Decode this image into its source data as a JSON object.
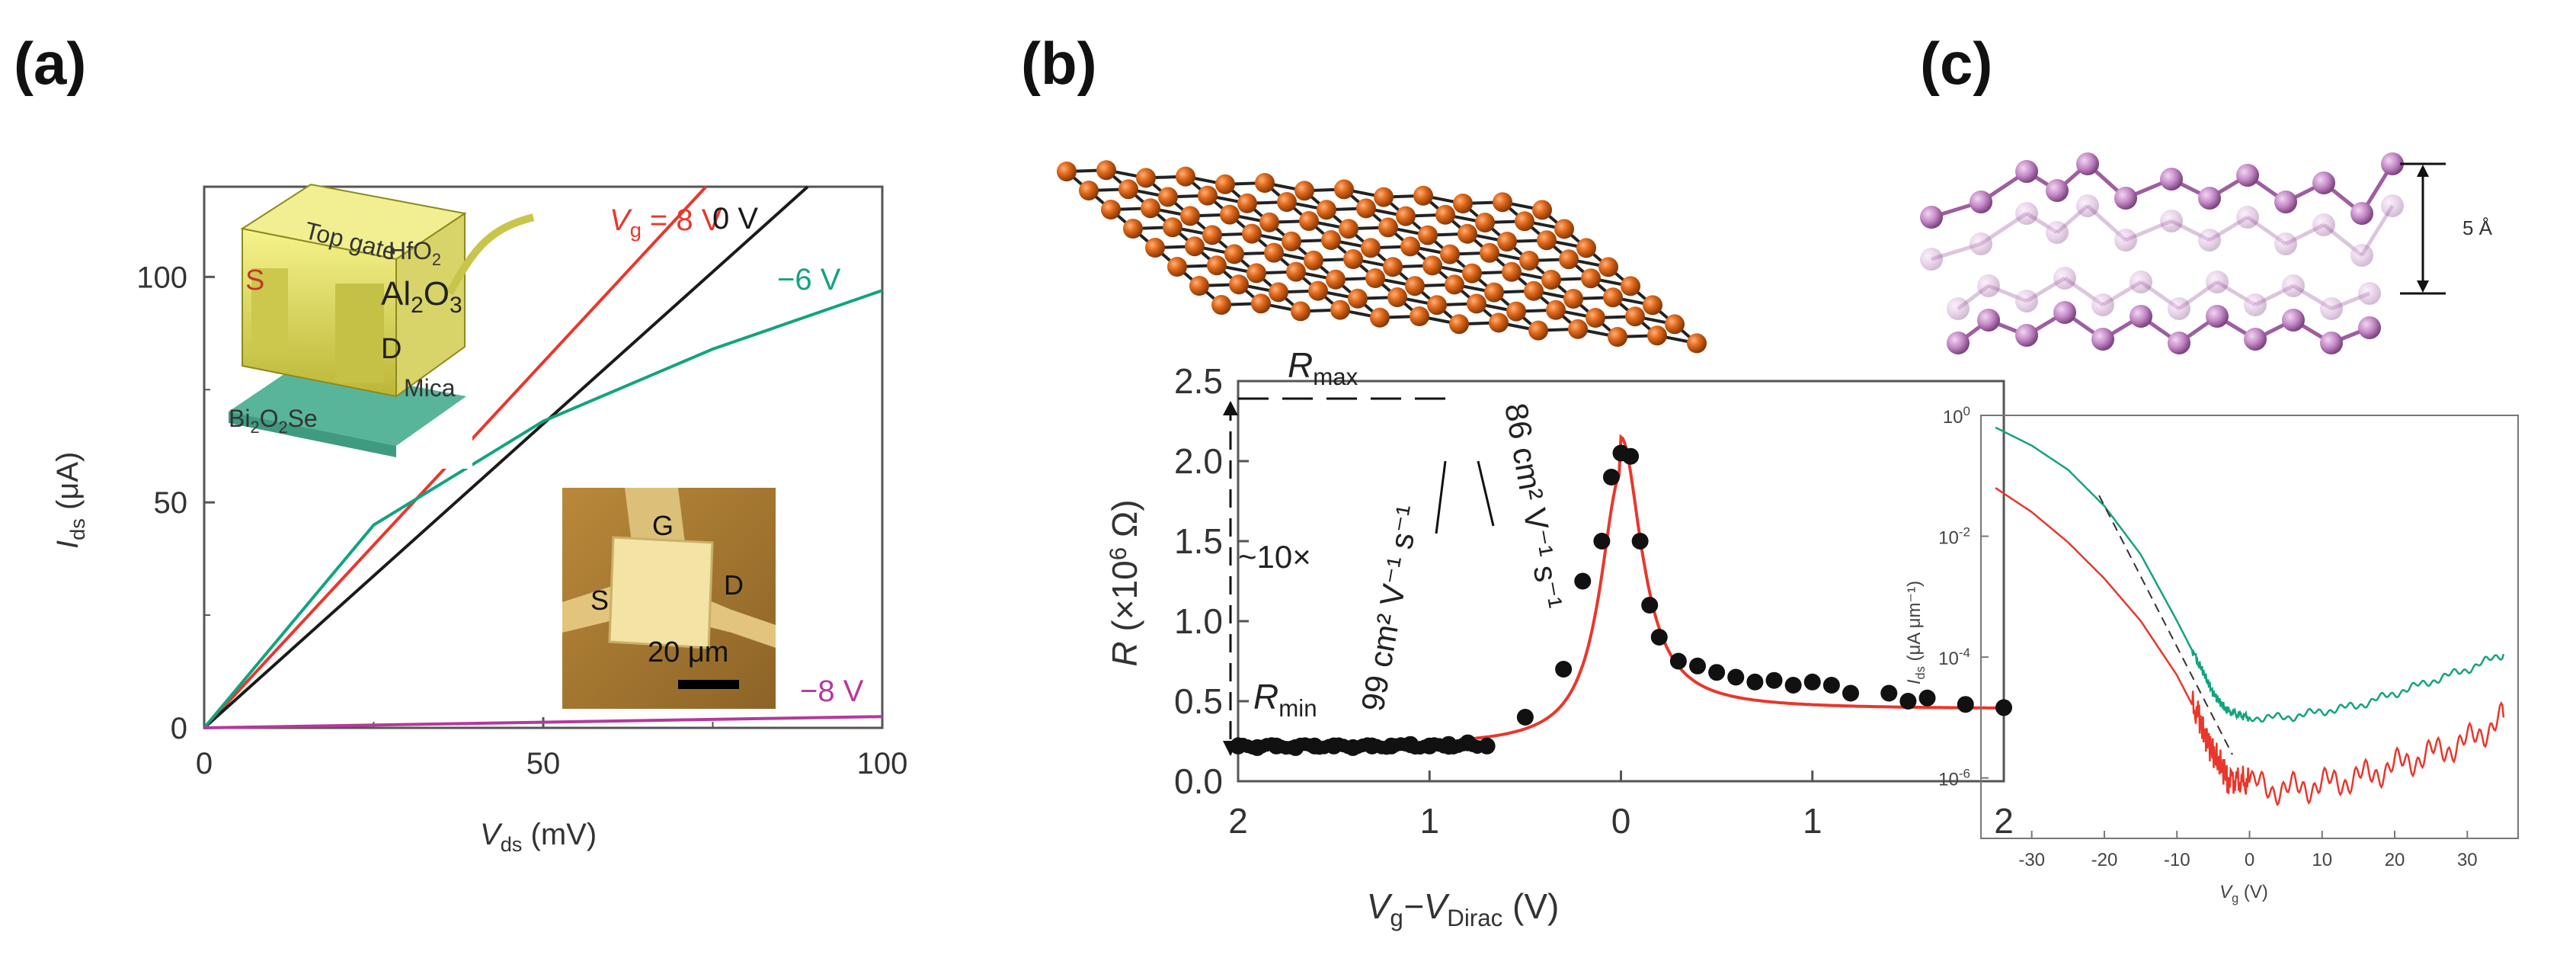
{
  "chart_data": [
    {
      "panel": "(a)",
      "type": "line",
      "xlabel_main": "V",
      "xlabel_sub": "ds",
      "xlabel_unit": " (mV)",
      "ylabel_main": "I",
      "ylabel_sub": "ds",
      "ylabel_unit": " (μA)",
      "xlim": [
        0,
        100
      ],
      "ylim": [
        0,
        120
      ],
      "x_ticks": [
        0,
        50,
        100
      ],
      "y_ticks": [
        0,
        50,
        100
      ],
      "series": [
        {
          "name": "V_g = 8 V",
          "label_main": "V",
          "label_sub": "g",
          "label_rest": " = 8 V",
          "color": "#e8372c",
          "points": [
            [
              0,
              0
            ],
            [
              74,
              120
            ]
          ]
        },
        {
          "name": "0 V",
          "label": "0 V",
          "color": "#1a1a1a",
          "points": [
            [
              0,
              0
            ],
            [
              89,
              120
            ]
          ]
        },
        {
          "name": "−6 V",
          "label": "−6 V",
          "color": "#12a37f",
          "points": [
            [
              0,
              0
            ],
            [
              25,
              45
            ],
            [
              50,
              68
            ],
            [
              75,
              84
            ],
            [
              100,
              97
            ]
          ]
        },
        {
          "name": "−8 V",
          "label": "−8 V",
          "color": "#b5399b",
          "points": [
            [
              0,
              0
            ],
            [
              100,
              2.5
            ]
          ]
        }
      ],
      "inset_device": {
        "labels": {
          "top_gate": "Top gate",
          "hfo2_main": "HfO",
          "hfo2_sub": "2",
          "al2o3_a": "Al",
          "al2o3_sub1": "2",
          "al2o3_b": "O",
          "al2o3_sub2": "3",
          "source": "S",
          "drain": "D",
          "mica": "Mica",
          "bi_a": "Bi",
          "bi_sub1": "2",
          "bi_b": "O",
          "bi_sub2": "2",
          "bi_c": "Se"
        }
      },
      "inset_micrograph": {
        "gate": "G",
        "source": "S",
        "drain": "D",
        "scale": "20 μm"
      }
    },
    {
      "panel": "(b)",
      "type": "scatter",
      "xlabel_a": "V",
      "xlabel_sub1": "g",
      "xlabel_b": "−V",
      "xlabel_sub2": "Dirac",
      "xlabel_unit": " (V)",
      "ylabel_a": "R",
      "ylabel_b": " (×10",
      "ylabel_sup": "6",
      "ylabel_c": " Ω)",
      "xlim": [
        -2,
        2
      ],
      "ylim": [
        0,
        2.5
      ],
      "x_tick_labels": [
        "2",
        "1",
        "0",
        "1",
        "2"
      ],
      "x_ticks": [
        -2,
        -1,
        0,
        1,
        2
      ],
      "y_ticks": [
        0.0,
        0.5,
        1.0,
        1.5,
        2.0,
        2.5
      ],
      "annotations": {
        "rmax_main": "R",
        "rmax_sub": "max",
        "rmin_main": "R",
        "rmin_sub": "min",
        "ratio": "~10×",
        "mob_left": "99 cm² V⁻¹ s⁻¹",
        "mob_right": "86 cm² V⁻¹ s⁻¹"
      },
      "points_x": [
        -2.0,
        -1.9,
        -1.8,
        -1.7,
        -1.6,
        -1.5,
        -1.4,
        -1.3,
        -1.2,
        -1.1,
        -1.0,
        -0.9,
        -0.8,
        -0.7,
        -0.5,
        -0.3,
        -0.2,
        -0.1,
        -0.05,
        0.0,
        0.05,
        0.1,
        0.15,
        0.2,
        0.3,
        0.4,
        0.5,
        0.6,
        0.7,
        0.8,
        0.9,
        1.0,
        1.1,
        1.2,
        1.4,
        1.5,
        1.6,
        1.8,
        2.0
      ],
      "points_y": [
        0.22,
        0.21,
        0.22,
        0.21,
        0.22,
        0.22,
        0.21,
        0.22,
        0.22,
        0.23,
        0.22,
        0.23,
        0.24,
        0.22,
        0.4,
        0.7,
        1.25,
        1.5,
        1.9,
        2.05,
        2.03,
        1.5,
        1.1,
        0.9,
        0.75,
        0.72,
        0.68,
        0.65,
        0.62,
        0.63,
        0.6,
        0.62,
        0.6,
        0.55,
        0.55,
        0.5,
        0.52,
        0.48,
        0.46
      ],
      "fit_color": "#e8372c"
    },
    {
      "panel": "(c)",
      "type": "line",
      "y_scale": "log",
      "xlabel_main": "V",
      "xlabel_sub": "g",
      "xlabel_unit": " (V)",
      "ylabel_main": "I",
      "ylabel_sub": "ds",
      "ylabel_unit": " (μA μm⁻¹)",
      "xlim": [
        -37,
        37
      ],
      "ylim_exp": [
        -7,
        0
      ],
      "x_ticks": [
        -30,
        -20,
        -10,
        0,
        10,
        20,
        30
      ],
      "y_tick_exps": [
        0,
        -2,
        -4,
        -6
      ],
      "y_tick_base": "10",
      "spacing_label": "5 Å",
      "series": [
        {
          "name": "green",
          "color": "#12a37f",
          "x": [
            -35,
            -30,
            -25,
            -20,
            -15,
            -10,
            -7,
            -5,
            -3,
            0,
            5,
            10,
            15,
            20,
            25,
            30,
            35
          ],
          "log_y": [
            -0.2,
            -0.5,
            -0.9,
            -1.5,
            -2.3,
            -3.4,
            -4.1,
            -4.6,
            -4.9,
            -5.0,
            -5.0,
            -4.9,
            -4.8,
            -4.6,
            -4.4,
            -4.2,
            -3.95
          ]
        },
        {
          "name": "red",
          "color": "#e8372c",
          "x": [
            -35,
            -30,
            -25,
            -20,
            -15,
            -10,
            -7,
            -5,
            -3,
            0,
            5,
            10,
            15,
            20,
            25,
            30,
            35
          ],
          "log_y": [
            -1.2,
            -1.6,
            -2.1,
            -2.7,
            -3.4,
            -4.3,
            -5.0,
            -5.6,
            -6.0,
            -6.1,
            -6.2,
            -6.1,
            -6.0,
            -5.8,
            -5.6,
            -5.4,
            -5.0
          ]
        }
      ]
    }
  ]
}
